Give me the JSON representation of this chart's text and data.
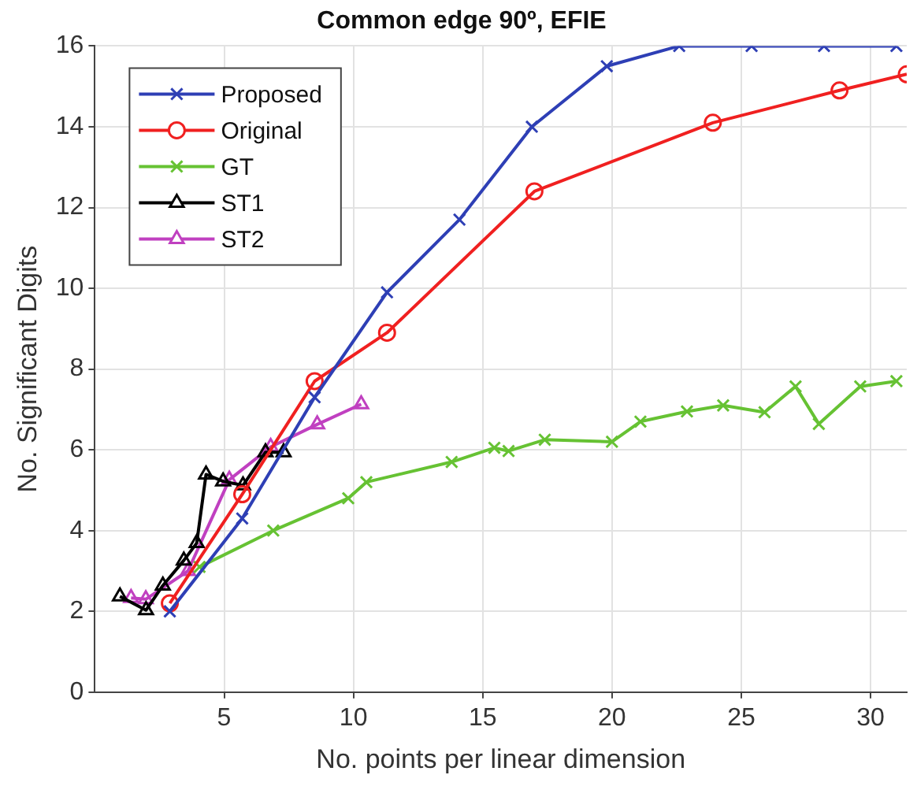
{
  "chart_data": {
    "type": "line",
    "title": "Common edge 90º, EFIE",
    "xlabel": "No. points per linear dimension",
    "ylabel": "No. Significant Digits",
    "xlim": [
      0,
      31.4
    ],
    "ylim": [
      0,
      16
    ],
    "xticks": [
      5,
      10,
      15,
      20,
      25,
      30
    ],
    "yticks": [
      0,
      2,
      4,
      6,
      8,
      10,
      12,
      14,
      16
    ],
    "grid": true,
    "legend": "top left",
    "series": [
      {
        "name": "Proposed",
        "color": "#2e3fb5",
        "marker": "cross",
        "x": [
          2.9,
          5.7,
          8.5,
          11.3,
          14.1,
          16.9,
          19.8,
          22.6,
          25.4,
          28.2,
          31.0
        ],
        "values": [
          2.0,
          4.3,
          7.3,
          9.9,
          11.7,
          14.0,
          15.5,
          16.0,
          16.0,
          16.0,
          16.0
        ]
      },
      {
        "name": "Original",
        "color": "#f02020",
        "marker": "circle",
        "x": [
          2.9,
          5.7,
          8.5,
          11.3,
          17.0,
          23.9,
          28.8,
          31.4
        ],
        "values": [
          2.2,
          4.9,
          7.7,
          8.9,
          12.4,
          14.1,
          14.9,
          15.3
        ]
      },
      {
        "name": "GT",
        "color": "#66c233",
        "marker": "cross",
        "x": [
          4.05,
          6.9,
          9.8,
          10.5,
          13.8,
          15.45,
          16.0,
          17.4,
          20.0,
          21.1,
          22.9,
          24.3,
          25.9,
          27.1,
          28.0,
          29.6,
          31.0
        ],
        "values": [
          3.1,
          4.0,
          4.8,
          5.2,
          5.7,
          6.05,
          5.97,
          6.25,
          6.2,
          6.7,
          6.95,
          7.1,
          6.93,
          7.57,
          6.64,
          7.57,
          7.7
        ]
      },
      {
        "name": "ST1",
        "color": "#000000",
        "marker": "triangle",
        "x": [
          0.97,
          1.98,
          2.63,
          3.44,
          3.94,
          4.3,
          4.96,
          5.73,
          6.6,
          7.3
        ],
        "values": [
          2.37,
          2.03,
          2.64,
          3.26,
          3.69,
          5.39,
          5.22,
          5.12,
          5.94,
          5.94
        ]
      },
      {
        "name": "ST2",
        "color": "#c040c0",
        "marker": "triangle",
        "x": [
          1.4,
          1.97,
          3.6,
          5.2,
          6.8,
          8.6,
          10.3
        ],
        "values": [
          2.33,
          2.3,
          3.0,
          5.26,
          6.07,
          6.63,
          7.13
        ]
      }
    ]
  }
}
